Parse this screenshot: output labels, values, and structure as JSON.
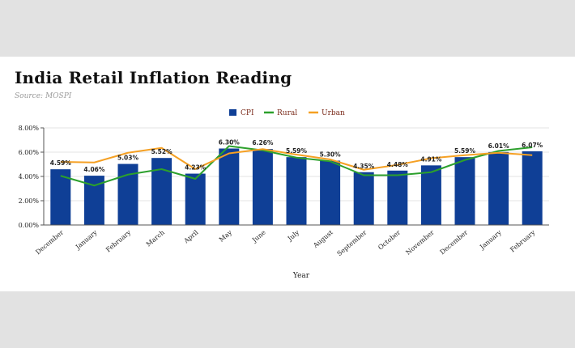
{
  "header": {
    "title": "India Retail Inflation Reading",
    "source": "Source: MOSPI"
  },
  "chart_data": {
    "type": "bar",
    "categories": [
      "December",
      "January",
      "February",
      "March",
      "April",
      "May",
      "June",
      "July",
      "August",
      "September",
      "October",
      "November",
      "December",
      "January",
      "February"
    ],
    "series": [
      {
        "name": "CPI",
        "type": "bar",
        "color": "#0f3f96",
        "values": [
          4.59,
          4.06,
          5.03,
          5.52,
          4.23,
          6.3,
          6.26,
          5.59,
          5.3,
          4.35,
          4.48,
          4.91,
          5.59,
          6.01,
          6.07
        ]
      },
      {
        "name": "Rural",
        "type": "line",
        "color": "#2ca02c",
        "values": [
          4.05,
          3.25,
          4.15,
          4.6,
          3.8,
          6.5,
          6.15,
          5.55,
          5.25,
          4.1,
          4.1,
          4.35,
          5.35,
          6.1,
          6.4
        ]
      },
      {
        "name": "Urban",
        "type": "line",
        "color": "#f5a023",
        "values": [
          5.2,
          5.15,
          5.95,
          6.35,
          4.6,
          5.9,
          6.25,
          5.8,
          5.4,
          4.55,
          4.95,
          5.5,
          5.75,
          5.95,
          5.75
        ]
      }
    ],
    "data_labels": [
      "4.59%",
      "4.06%",
      "5.03%",
      "5.52%",
      "4.23%",
      "6.30%",
      "6.26%",
      "5.59%",
      "5.30%",
      "4.35%",
      "4.48%",
      "4.91%",
      "5.59%",
      "6.01%",
      "6.07%"
    ],
    "y_ticks": [
      "0.00%",
      "2.00%",
      "4.00%",
      "6.00%",
      "8.00%"
    ],
    "ylim": [
      0,
      8
    ],
    "xlabel": "Year",
    "ylabel": "",
    "grid": "horizontal",
    "legend_position": "top"
  }
}
